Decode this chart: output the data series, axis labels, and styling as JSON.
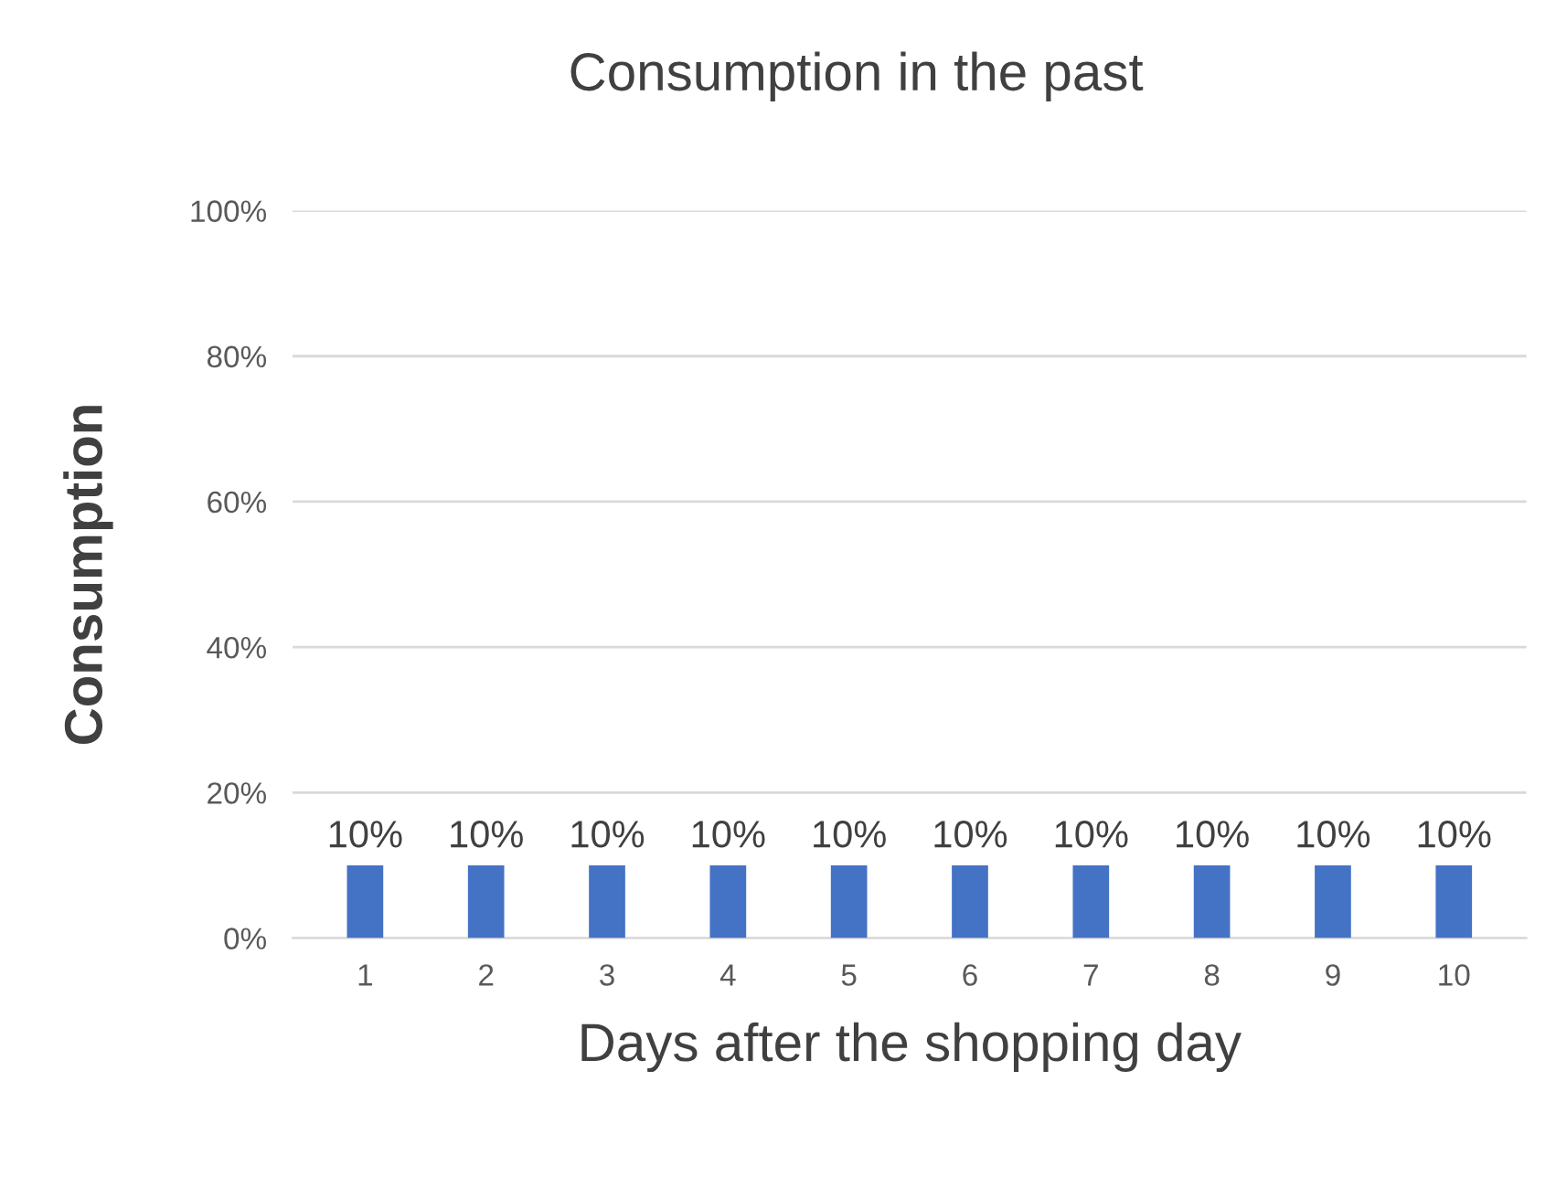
{
  "chart_data": {
    "type": "bar",
    "title": "Consumption in the past",
    "xlabel": "Days after the shopping day",
    "ylabel": "Consumption",
    "categories": [
      "1",
      "2",
      "3",
      "4",
      "5",
      "6",
      "7",
      "8",
      "9",
      "10"
    ],
    "values": [
      10,
      10,
      10,
      10,
      10,
      10,
      10,
      10,
      10,
      10
    ],
    "value_labels": [
      "10%",
      "10%",
      "10%",
      "10%",
      "10%",
      "10%",
      "10%",
      "10%",
      "10%",
      "10%"
    ],
    "color": "#4472c4",
    "ylim": [
      0,
      100
    ],
    "yticks": [
      {
        "value": 0,
        "label": "0%"
      },
      {
        "value": 20,
        "label": "20%"
      },
      {
        "value": 40,
        "label": "40%"
      },
      {
        "value": 60,
        "label": "60%"
      },
      {
        "value": 80,
        "label": "80%"
      },
      {
        "value": 100,
        "label": "100%"
      }
    ],
    "grid": "y"
  }
}
